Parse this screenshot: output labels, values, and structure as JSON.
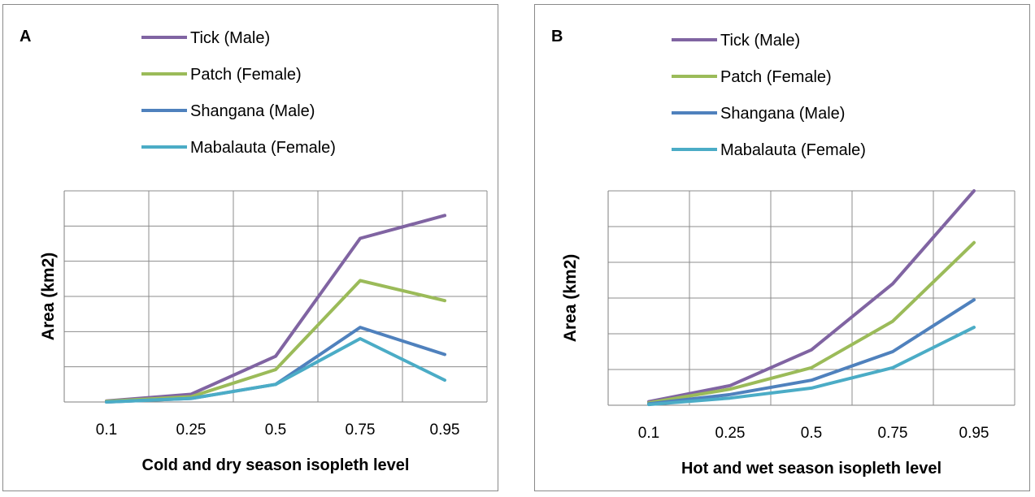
{
  "chart_data": [
    {
      "type": "line",
      "panel_label": "A",
      "xlabel": "Cold and dry season isopleth level",
      "ylabel": "Area (km2)",
      "categories": [
        "0.1",
        "0.25",
        "0.5",
        "0.75",
        "0.95"
      ],
      "ylim": [
        0,
        6
      ],
      "grid": true,
      "legend_position": "top",
      "series": [
        {
          "name": "Tick (Male)",
          "color": "#8064a2",
          "values": [
            0.03,
            0.22,
            1.3,
            4.65,
            5.3
          ]
        },
        {
          "name": "Patch (Female)",
          "color": "#9bbb59",
          "values": [
            0.02,
            0.15,
            0.92,
            3.45,
            2.88
          ]
        },
        {
          "name": "Shangana (Male)",
          "color": "#4f81bd",
          "values": [
            0.0,
            0.1,
            0.5,
            2.12,
            1.35
          ]
        },
        {
          "name": "Mabalauta (Female)",
          "color": "#4bacc6",
          "values": [
            0.0,
            0.1,
            0.5,
            1.8,
            0.62
          ]
        }
      ]
    },
    {
      "type": "line",
      "panel_label": "B",
      "xlabel": "Hot and wet season isopleth level",
      "ylabel": "Area (km2)",
      "categories": [
        "0.1",
        "0.25",
        "0.5",
        "0.75",
        "0.95"
      ],
      "ylim": [
        0,
        6
      ],
      "grid": true,
      "legend_position": "top",
      "series": [
        {
          "name": "Tick (Male)",
          "color": "#8064a2",
          "values": [
            0.1,
            0.55,
            1.55,
            3.4,
            6.0
          ]
        },
        {
          "name": "Patch (Female)",
          "color": "#9bbb59",
          "values": [
            0.07,
            0.45,
            1.05,
            2.35,
            4.55
          ]
        },
        {
          "name": "Shangana (Male)",
          "color": "#4f81bd",
          "values": [
            0.04,
            0.3,
            0.7,
            1.5,
            2.95
          ]
        },
        {
          "name": "Mabalauta (Female)",
          "color": "#4bacc6",
          "values": [
            0.02,
            0.2,
            0.48,
            1.05,
            2.18
          ]
        }
      ]
    }
  ]
}
